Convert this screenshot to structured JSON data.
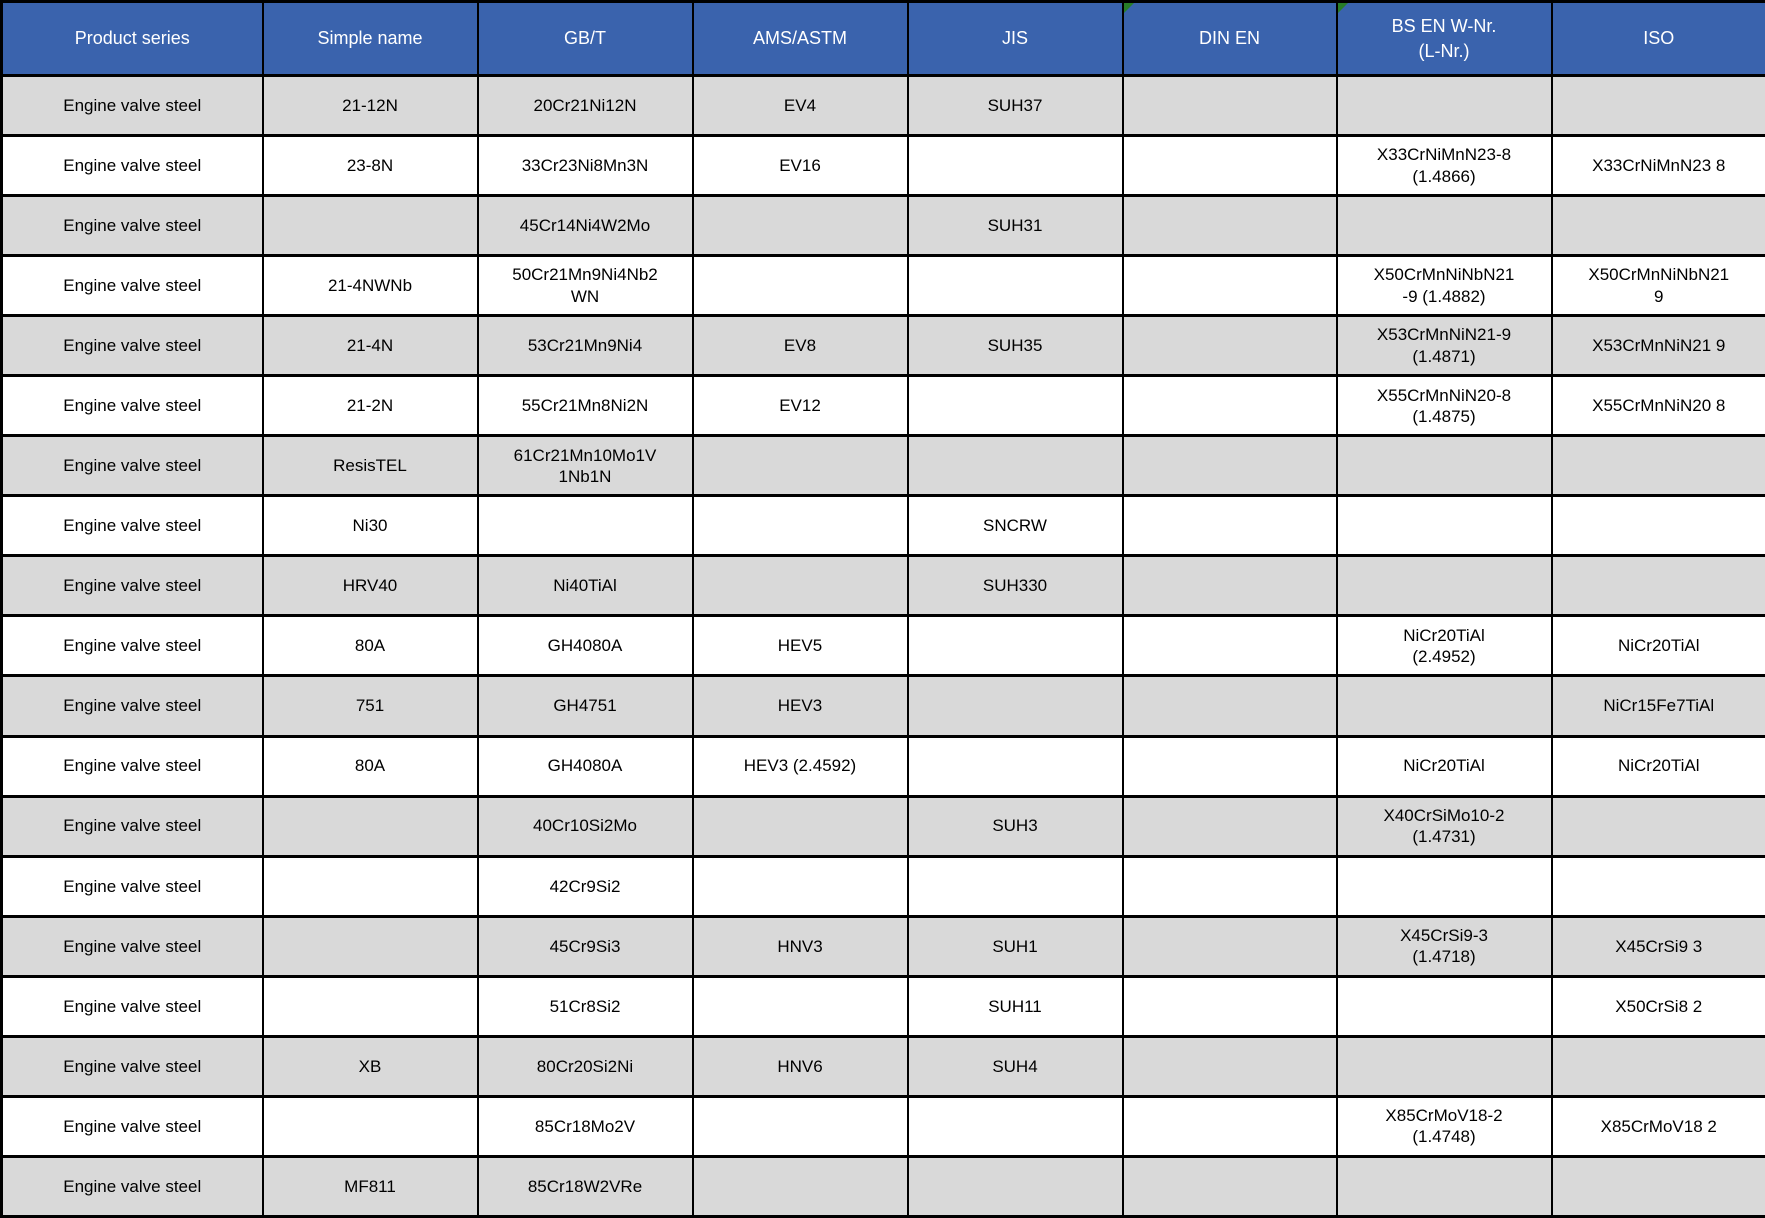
{
  "table": {
    "columns": [
      {
        "id": "product-series",
        "label": "Product series",
        "error_indicator": false
      },
      {
        "id": "simple-name",
        "label": "Simple name",
        "error_indicator": false
      },
      {
        "id": "gbt",
        "label": "GB/T",
        "error_indicator": false
      },
      {
        "id": "ams-astm",
        "label": "AMS/ASTM",
        "error_indicator": false
      },
      {
        "id": "jis",
        "label": "JIS",
        "error_indicator": false
      },
      {
        "id": "din-en",
        "label": "DIN EN",
        "error_indicator": true
      },
      {
        "id": "bs-en-w-nr",
        "label": "BS EN W-Nr.\n(L-Nr.)",
        "error_indicator": true
      },
      {
        "id": "iso",
        "label": "ISO",
        "error_indicator": false
      }
    ],
    "rows": [
      [
        "Engine valve steel",
        "21-12N",
        "20Cr21Ni12N",
        "EV4",
        "SUH37",
        "",
        "",
        ""
      ],
      [
        "Engine valve steel",
        "23-8N",
        "33Cr23Ni8Mn3N",
        "EV16",
        "",
        "",
        "X33CrNiMnN23-8\n(1.4866)",
        "X33CrNiMnN23 8"
      ],
      [
        "Engine valve steel",
        "",
        "45Cr14Ni4W2Mo",
        "",
        "SUH31",
        "",
        "",
        ""
      ],
      [
        "Engine valve steel",
        "21-4NWNb",
        "50Cr21Mn9Ni4Nb2\nWN",
        "",
        "",
        "",
        "X50CrMnNiNbN21\n-9 (1.4882)",
        "X50CrMnNiNbN21\n9"
      ],
      [
        "Engine valve steel",
        "21-4N",
        "53Cr21Mn9Ni4",
        "EV8",
        "SUH35",
        "",
        "X53CrMnNiN21-9\n(1.4871)",
        "X53CrMnNiN21 9"
      ],
      [
        "Engine valve steel",
        "21-2N",
        "55Cr21Mn8Ni2N",
        "EV12",
        "",
        "",
        "X55CrMnNiN20-8\n(1.4875)",
        "X55CrMnNiN20 8"
      ],
      [
        "Engine valve steel",
        "ResisTEL",
        "61Cr21Mn10Mo1V\n1Nb1N",
        "",
        "",
        "",
        "",
        ""
      ],
      [
        "Engine valve steel",
        "Ni30",
        "",
        "",
        "SNCRW",
        "",
        "",
        ""
      ],
      [
        "Engine valve steel",
        "HRV40",
        "Ni40TiAl",
        "",
        "SUH330",
        "",
        "",
        ""
      ],
      [
        "Engine valve steel",
        "80A",
        "GH4080A",
        "HEV5",
        "",
        "",
        "NiCr20TiAl\n(2.4952)",
        "NiCr20TiAl"
      ],
      [
        "Engine valve steel",
        "751",
        "GH4751",
        "HEV3",
        "",
        "",
        "",
        "NiCr15Fe7TiAl"
      ],
      [
        "Engine valve steel",
        "80A",
        "GH4080A",
        "HEV3 (2.4592)",
        "",
        "",
        "NiCr20TiAl",
        "NiCr20TiAl"
      ],
      [
        "Engine valve steel",
        "",
        "40Cr10Si2Mo",
        "",
        "SUH3",
        "",
        "X40CrSiMo10-2\n(1.4731)",
        ""
      ],
      [
        "Engine valve steel",
        "",
        "42Cr9Si2",
        "",
        "",
        "",
        "",
        ""
      ],
      [
        "Engine valve steel",
        "",
        "45Cr9Si3",
        "HNV3",
        "SUH1",
        "",
        "X45CrSi9-3\n(1.4718)",
        "X45CrSi9 3"
      ],
      [
        "Engine valve steel",
        "",
        "51Cr8Si2",
        "",
        "SUH11",
        "",
        "",
        "X50CrSi8 2"
      ],
      [
        "Engine valve steel",
        "XB",
        "80Cr20Si2Ni",
        "HNV6",
        "SUH4",
        "",
        "",
        ""
      ],
      [
        "Engine valve steel",
        "",
        "85Cr18Mo2V",
        "",
        "",
        "",
        "X85CrMoV18-2\n(1.4748)",
        "X85CrMoV18 2"
      ],
      [
        "Engine valve steel",
        "MF811",
        "85Cr18W2VRe",
        "",
        "",
        "",
        "",
        ""
      ]
    ]
  },
  "colors": {
    "header_bg": "#3a63ad",
    "header_text": "#ffffff",
    "row_shaded": "#d9d9d9",
    "row_plain": "#ffffff",
    "border": "#000000",
    "error_indicator_green": "#287d28"
  },
  "icons": {
    "error_indicator": "green-corner-triangle"
  }
}
